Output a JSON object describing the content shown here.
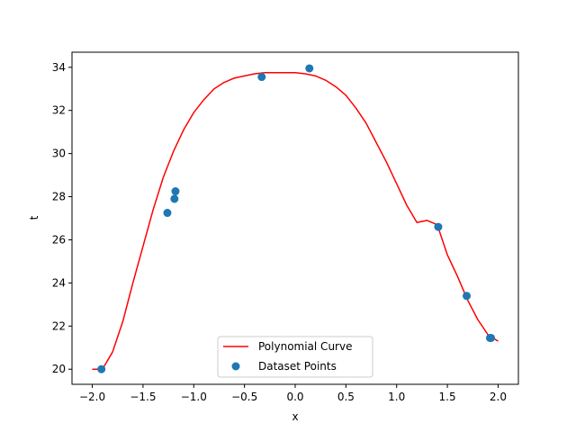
{
  "chart_data": {
    "type": "scatter",
    "title": "",
    "xlabel": "x",
    "ylabel": "t",
    "xlim": [
      -2.2,
      2.2
    ],
    "ylim": [
      19.3,
      34.7
    ],
    "xticks": [
      -2.0,
      -1.5,
      -1.0,
      -0.5,
      0.0,
      0.5,
      1.0,
      1.5,
      2.0
    ],
    "xtick_labels": [
      "−2.0",
      "−1.5",
      "−1.0",
      "−0.5",
      "0.0",
      "0.5",
      "1.0",
      "1.5",
      "2.0"
    ],
    "yticks": [
      20,
      22,
      24,
      26,
      28,
      30,
      32,
      34
    ],
    "ytick_labels": [
      "20",
      "22",
      "24",
      "26",
      "28",
      "30",
      "32",
      "34"
    ],
    "grid": false,
    "legend_position": "lower center",
    "series": [
      {
        "name": "Polynomial Curve",
        "kind": "line",
        "color": "#ff0000",
        "x": [
          -2.0,
          -1.9,
          -1.8,
          -1.7,
          -1.6,
          -1.5,
          -1.4,
          -1.3,
          -1.2,
          -1.1,
          -1.0,
          -0.9,
          -0.8,
          -0.7,
          -0.6,
          -0.5,
          -0.4,
          -0.3,
          -0.2,
          -0.1,
          0.0,
          0.1,
          0.2,
          0.3,
          0.4,
          0.5,
          0.6,
          0.7,
          0.8,
          0.9,
          1.0,
          1.1,
          1.2,
          1.3,
          1.4,
          1.5,
          1.6,
          1.7,
          1.8,
          1.9,
          2.0
        ],
        "y": [
          20.0,
          20.0,
          20.8,
          22.2,
          24.0,
          25.7,
          27.4,
          28.9,
          30.1,
          31.1,
          31.9,
          32.5,
          33.0,
          33.3,
          33.5,
          33.6,
          33.7,
          33.75,
          33.75,
          33.75,
          33.75,
          33.7,
          33.6,
          33.4,
          33.1,
          32.7,
          32.1,
          31.4,
          30.5,
          29.6,
          28.6,
          27.6,
          26.8,
          26.9,
          26.7,
          25.3,
          24.3,
          23.2,
          22.3,
          21.6,
          21.3
        ]
      },
      {
        "name": "Dataset Points",
        "kind": "scatter",
        "color": "#1f77b4",
        "x": [
          -1.91,
          -1.26,
          -1.19,
          -1.18,
          -0.33,
          0.14,
          1.41,
          1.69,
          1.92,
          1.93
        ],
        "y": [
          20.0,
          27.25,
          27.9,
          28.25,
          33.55,
          33.95,
          26.6,
          23.4,
          21.45,
          21.45
        ]
      }
    ]
  }
}
